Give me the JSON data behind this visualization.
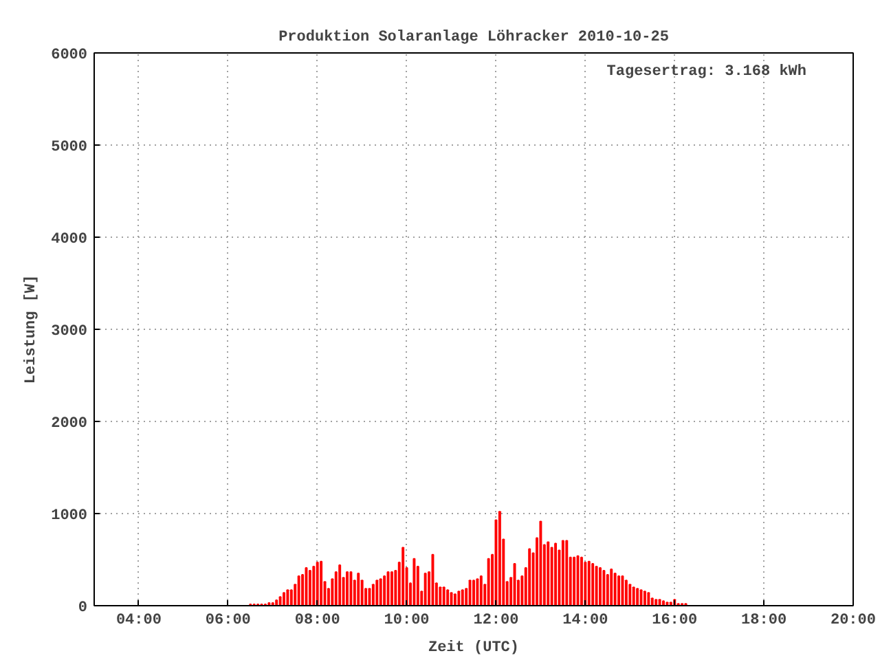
{
  "chart_data": {
    "type": "bar",
    "title": "Produktion Solaranlage Löhracker 2010-10-25",
    "xlabel": "Zeit (UTC)",
    "ylabel": "Leistung [W]",
    "annotations": [
      "Tagesertrag: 3.168 kWh"
    ],
    "x": [
      6.5,
      6.5833,
      6.6667,
      6.75,
      6.8333,
      6.9167,
      7,
      7.0833,
      7.1667,
      7.25,
      7.3333,
      7.4167,
      7.5,
      7.5833,
      7.6667,
      7.75,
      7.8333,
      7.9167,
      8,
      8.0833,
      8.1667,
      8.25,
      8.3333,
      8.4167,
      8.5,
      8.5833,
      8.6667,
      8.75,
      8.8333,
      8.9167,
      9,
      9.0833,
      9.1667,
      9.25,
      9.3333,
      9.4167,
      9.5,
      9.5833,
      9.6667,
      9.75,
      9.8333,
      9.9167,
      10,
      10.0833,
      10.1667,
      10.25,
      10.3333,
      10.4167,
      10.5,
      10.5833,
      10.6667,
      10.75,
      10.8333,
      10.9167,
      11,
      11.0833,
      11.1667,
      11.25,
      11.3333,
      11.4167,
      11.5,
      11.5833,
      11.6667,
      11.75,
      11.8333,
      11.9167,
      12,
      12.0833,
      12.1667,
      12.25,
      12.3333,
      12.4167,
      12.5,
      12.5833,
      12.6667,
      12.75,
      12.8333,
      12.9167,
      13,
      13.0833,
      13.1667,
      13.25,
      13.3333,
      13.4167,
      13.5,
      13.5833,
      13.6667,
      13.75,
      13.8333,
      13.9167,
      14,
      14.0833,
      14.1667,
      14.25,
      14.3333,
      14.4167,
      14.5,
      14.5833,
      14.6667,
      14.75,
      14.8333,
      14.9167,
      15,
      15.0833,
      15.1667,
      15.25,
      15.3333,
      15.4167,
      15.5,
      15.5833,
      15.6667,
      15.75,
      15.8333,
      15.9167,
      16,
      16.0833,
      16.1667,
      16.25
    ],
    "values": [
      15,
      15,
      15,
      15,
      15,
      30,
      30,
      60,
      95,
      140,
      170,
      170,
      230,
      320,
      335,
      410,
      380,
      425,
      470,
      480,
      260,
      185,
      290,
      365,
      440,
      305,
      365,
      365,
      275,
      350,
      275,
      185,
      185,
      230,
      275,
      290,
      320,
      365,
      365,
      380,
      470,
      630,
      410,
      245,
      510,
      425,
      155,
      350,
      365,
      555,
      245,
      200,
      200,
      170,
      140,
      125,
      155,
      170,
      185,
      275,
      275,
      290,
      320,
      230,
      510,
      555,
      930,
      1020,
      720,
      260,
      305,
      455,
      275,
      320,
      410,
      615,
      570,
      735,
      915,
      660,
      690,
      630,
      675,
      600,
      705,
      705,
      525,
      525,
      540,
      525,
      470,
      480,
      455,
      425,
      410,
      380,
      335,
      395,
      350,
      320,
      320,
      275,
      230,
      200,
      185,
      170,
      155,
      140,
      80,
      65,
      65,
      50,
      35,
      35,
      65,
      20,
      20,
      20
    ],
    "color": "#ff0000",
    "xlim": [
      3,
      20
    ],
    "xticks": [
      {
        "value": 4,
        "label": "04:00"
      },
      {
        "value": 6,
        "label": "06:00"
      },
      {
        "value": 8,
        "label": "08:00"
      },
      {
        "value": 10,
        "label": "10:00"
      },
      {
        "value": 12,
        "label": "12:00"
      },
      {
        "value": 14,
        "label": "14:00"
      },
      {
        "value": 16,
        "label": "16:00"
      },
      {
        "value": 18,
        "label": "18:00"
      },
      {
        "value": 20,
        "label": "20:00"
      }
    ],
    "ylim": [
      0,
      6000
    ],
    "yticks": [
      0,
      1000,
      2000,
      3000,
      4000,
      5000,
      6000
    ],
    "grid": true
  }
}
